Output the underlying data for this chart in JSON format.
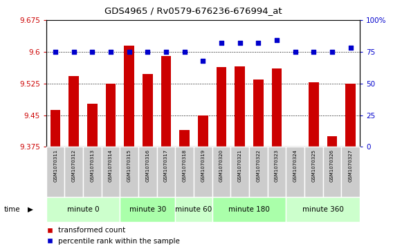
{
  "title": "GDS4965 / Rv0579-676236-676994_at",
  "samples": [
    "GSM1070311",
    "GSM1070312",
    "GSM1070313",
    "GSM1070314",
    "GSM1070315",
    "GSM1070316",
    "GSM1070317",
    "GSM1070318",
    "GSM1070319",
    "GSM1070320",
    "GSM1070321",
    "GSM1070322",
    "GSM1070323",
    "GSM1070324",
    "GSM1070325",
    "GSM1070326",
    "GSM1070327"
  ],
  "bar_values": [
    9.463,
    9.543,
    9.477,
    9.525,
    9.615,
    9.547,
    9.59,
    9.415,
    9.45,
    9.563,
    9.565,
    9.535,
    9.56,
    9.375,
    9.527,
    9.4,
    9.525
  ],
  "dot_values": [
    75,
    75,
    75,
    75,
    75,
    75,
    75,
    75,
    68,
    82,
    82,
    82,
    84,
    75,
    75,
    75,
    78
  ],
  "groups": [
    {
      "label": "minute 0",
      "start": 0,
      "end": 4,
      "color": "#ccffcc"
    },
    {
      "label": "minute 30",
      "start": 4,
      "end": 7,
      "color": "#aaffaa"
    },
    {
      "label": "minute 60",
      "start": 7,
      "end": 9,
      "color": "#ccffcc"
    },
    {
      "label": "minute 180",
      "start": 9,
      "end": 13,
      "color": "#aaffaa"
    },
    {
      "label": "minute 360",
      "start": 13,
      "end": 17,
      "color": "#ccffcc"
    }
  ],
  "ylim_left": [
    9.375,
    9.675
  ],
  "ylim_right": [
    0,
    100
  ],
  "yticks_left": [
    9.375,
    9.45,
    9.525,
    9.6,
    9.675
  ],
  "yticks_right": [
    0,
    25,
    50,
    75,
    100
  ],
  "bar_color": "#cc0000",
  "dot_color": "#0000cc",
  "legend_labels": [
    "transformed count",
    "percentile rank within the sample"
  ],
  "time_label": "time"
}
